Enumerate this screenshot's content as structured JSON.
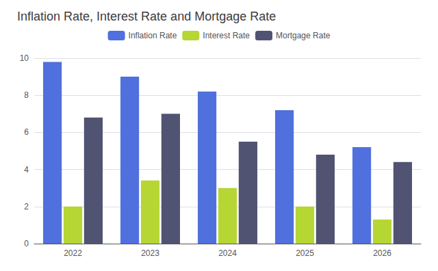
{
  "chart_data": {
    "type": "bar",
    "title": "Inflation Rate, Interest Rate and Mortgage Rate",
    "categories": [
      "2022",
      "2023",
      "2024",
      "2025",
      "2026"
    ],
    "series": [
      {
        "name": "Inflation Rate",
        "values": [
          9.8,
          9.0,
          8.2,
          7.2,
          5.2
        ]
      },
      {
        "name": "Interest Rate",
        "values": [
          2.0,
          3.4,
          3.0,
          2.0,
          1.3
        ]
      },
      {
        "name": "Mortgage Rate",
        "values": [
          6.8,
          7.0,
          5.5,
          4.8,
          4.4
        ]
      }
    ],
    "ylim": [
      0,
      10
    ],
    "yticks": [
      0,
      2,
      4,
      6,
      8,
      10
    ],
    "grid": true,
    "legend": "top"
  }
}
